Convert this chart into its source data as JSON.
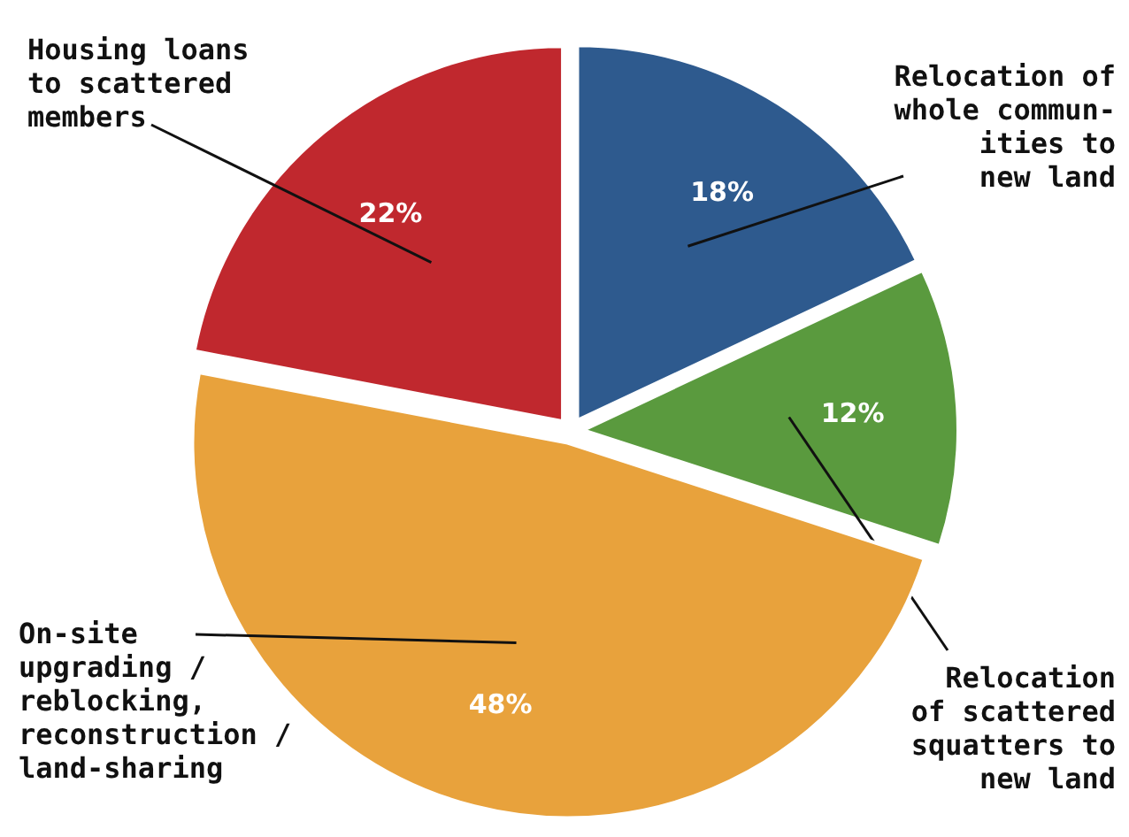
{
  "chart_data": {
    "type": "pie",
    "categories": [
      "Relocation of\nwhole commun-\nities to\nnew land",
      "Relocation\nof scattered\nsquatters to\nnew land",
      "On-site\nupgrading /\nreblocking,\nreconstruction /\nland-sharing",
      "Housing loans\nto scattered\nmembers"
    ],
    "values": [
      18,
      12,
      48,
      22
    ],
    "colors": [
      "#2e5a8e",
      "#5a9a3e",
      "#e8a23c",
      "#c0282e"
    ],
    "value_labels": [
      "18%",
      "12%",
      "48%",
      "22%"
    ]
  }
}
